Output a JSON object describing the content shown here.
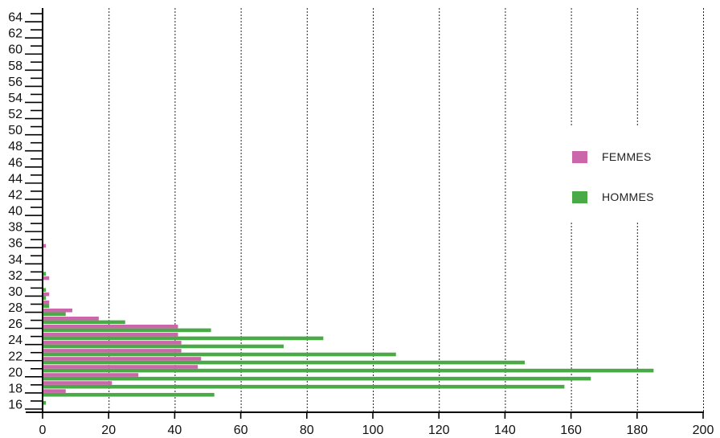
{
  "chart_data": {
    "type": "bar",
    "orientation": "horizontal",
    "x_ticks": [
      "0",
      "20",
      "40",
      "60",
      "80",
      "100",
      "120",
      "140",
      "160",
      "180",
      "200"
    ],
    "y_tick_labels": [
      "16",
      "18",
      "20",
      "22",
      "24",
      "26",
      "28",
      "30",
      "32",
      "34",
      "36",
      "38",
      "40",
      "42",
      "44",
      "46",
      "48",
      "50",
      "52",
      "54",
      "56",
      "58",
      "60",
      "62",
      "64"
    ],
    "xlim": [
      0,
      200
    ],
    "ylim": [
      15.5,
      65
    ],
    "grid": "vertical dotted",
    "legend_position": "right",
    "categories": [
      17,
      18,
      19,
      20,
      21,
      22,
      23,
      24,
      25,
      26,
      27,
      28,
      29,
      30,
      31,
      32,
      33,
      36
    ],
    "series": [
      {
        "name": "FEMMES",
        "color": "#cc66aa",
        "values": [
          0,
          7,
          21,
          29,
          47,
          48,
          42,
          42,
          41,
          41,
          17,
          9,
          2,
          2,
          0,
          2,
          0,
          1
        ]
      },
      {
        "name": "HOMMES",
        "color": "#4aaa48",
        "values": [
          1,
          52,
          158,
          166,
          185,
          146,
          107,
          73,
          85,
          51,
          25,
          7,
          2,
          1,
          1,
          0,
          1,
          0
        ]
      }
    ]
  },
  "legend": {
    "femmes_label": "FEMMES",
    "hommes_label": "HOMMES",
    "femmes_color": "#cc66aa",
    "hommes_color": "#4aaa48"
  }
}
